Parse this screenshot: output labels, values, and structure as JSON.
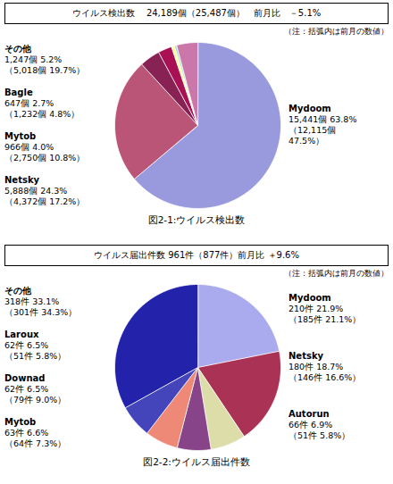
{
  "chart_data": [
    {
      "type": "pie",
      "title": "ウイルス検出数　 24,189個（25,487個）　前月比　－5.1%",
      "note": "（注：括弧内は前月の数値）",
      "caption": "図2-1:ウイルス検出数",
      "values": [
        15441,
        5888,
        966,
        647,
        150,
        100,
        997
      ],
      "colors": [
        "#9999dd",
        "#bb5577",
        "#882255",
        "#aa1155",
        "#ffff99",
        "#aadddd",
        "#cc77aa"
      ],
      "annotations": [
        {
          "text": [
            "Mydoom",
            "15,441個 63.8%",
            "（12,115個",
            "47.5%）"
          ]
        },
        {
          "text": [
            "その他",
            "1,247個 5.2%",
            "（5,018個 19.7%）"
          ]
        },
        {
          "text": [
            "Bagle",
            "647個 2.7%",
            "（1,232個 4.8%）"
          ]
        },
        {
          "text": [
            "Mytob",
            "966個 4.0%",
            "（2,750個 10.8%）"
          ]
        },
        {
          "text": [
            "Netsky",
            "5,888個 24.3%",
            "（4,372個 17.2%）"
          ]
        }
      ]
    },
    {
      "type": "pie",
      "title": "ウイルス届出件数 961件（877件）前月比 ＋9.6%",
      "note": "（注：括弧内は前月の数値）",
      "caption": "図2-2:ウイルス届出件数",
      "values": [
        210,
        180,
        66,
        63,
        62,
        62,
        318
      ],
      "colors": [
        "#aaaaee",
        "#aa3355",
        "#ddddaa",
        "#884488",
        "#ee8877",
        "#4444bb",
        "#2222aa"
      ],
      "annotations": [
        {
          "text": [
            "Mydoom",
            "210件 21.9%",
            "（185件 21.1%）"
          ]
        },
        {
          "text": [
            "Netsky",
            "180件 18.7%",
            "（146件 16.6%）"
          ]
        },
        {
          "text": [
            "Autorun",
            "66件 6.9%",
            "（51件 5.8%）"
          ]
        },
        {
          "text": [
            "その他",
            "318件 33.1%",
            "（301件 34.3%）"
          ]
        },
        {
          "text": [
            "Laroux",
            "62件 6.5%",
            "（51件 5.8%）"
          ]
        },
        {
          "text": [
            "Downad",
            "62件 6.5%",
            "（79件 9.0%）"
          ]
        },
        {
          "text": [
            "Mytob",
            "63件 6.6%",
            "（64件 7.3%）"
          ]
        }
      ]
    }
  ]
}
